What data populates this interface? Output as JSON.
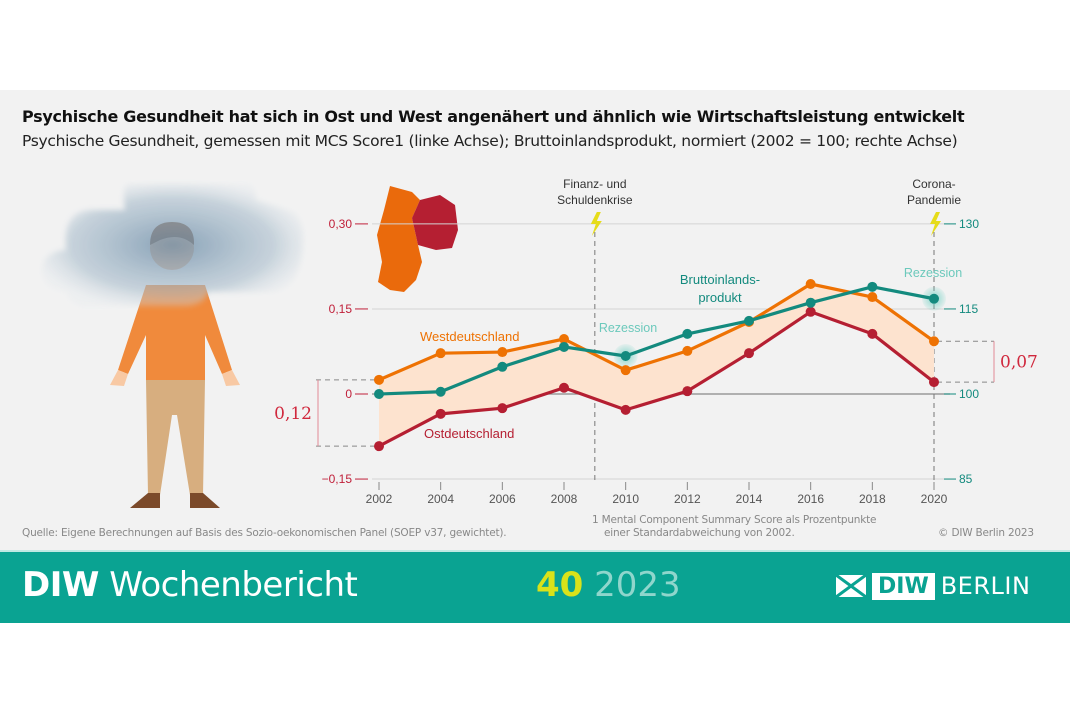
{
  "header": {
    "title": "Psychische Gesundheit hat sich in Ost und West angenähert und ähnlich wie Wirtschaftsleistung entwickelt",
    "subtitle": "Psychische Gesundheit, gemessen mit MCS Score1 (linke Achse); Bruttoinlandsprodukt, normiert (2002 = 100; rechte Achse)"
  },
  "chart_data": {
    "type": "line",
    "x": [
      2002,
      2004,
      2006,
      2008,
      2010,
      2012,
      2014,
      2016,
      2018,
      2020
    ],
    "xticks": [
      "2002",
      "2004",
      "2006",
      "2008",
      "2010",
      "2012",
      "2014",
      "2016",
      "2018",
      "2020"
    ],
    "left_axis": {
      "ylim": [
        -0.15,
        0.3
      ],
      "ticks": [
        "−0,15",
        "0",
        "0,15",
        "0,30"
      ],
      "tick_values": [
        -0.15,
        0,
        0.15,
        0.3
      ],
      "color": "#c0203a"
    },
    "right_axis": {
      "ylim": [
        85,
        130
      ],
      "ticks": [
        "85",
        "100",
        "115",
        "130"
      ],
      "tick_values": [
        85,
        100,
        115,
        130
      ],
      "color": "#138a7e"
    },
    "grid": true,
    "series": [
      {
        "name": "Westdeutschland",
        "axis": "left",
        "color": "#ee7203",
        "values": [
          0.025,
          0.072,
          0.074,
          0.097,
          0.042,
          0.076,
          0.127,
          0.194,
          0.171,
          0.093
        ]
      },
      {
        "name": "Ostdeutschland",
        "axis": "left",
        "color": "#b51f32",
        "values": [
          -0.092,
          -0.035,
          -0.025,
          0.011,
          -0.028,
          0.005,
          0.072,
          0.145,
          0.106,
          0.021
        ]
      },
      {
        "name": "Bruttoinlands-produkt",
        "name_lines": [
          "Bruttoinlands-",
          "produkt"
        ],
        "axis": "right",
        "color": "#138a7e",
        "values": [
          100,
          100.4,
          104.8,
          108.3,
          106.7,
          110.6,
          112.9,
          116.1,
          118.9,
          116.8
        ]
      }
    ],
    "gap_fill_color": "#fde3cf",
    "annotations": {
      "gap_2002": "0,12",
      "gap_2020": "0,07",
      "recession_label": "Rezession",
      "recession_years": [
        2010,
        2020
      ],
      "events": [
        {
          "year": 2009,
          "lines": [
            "Finanz- und",
            "Schuldenkrise"
          ]
        },
        {
          "year": 2020,
          "lines": [
            "Corona-",
            "Pandemie"
          ]
        }
      ]
    }
  },
  "footer": {
    "source": "Quelle: Eigene Berechnungen auf Basis des Sozio-oekonomischen Panel (SOEP v37, gewichtet).",
    "footnote_1": "1  Mental Component Summary Score als Prozentpunkte",
    "footnote_2": "einer Standardabweichung von 2002.",
    "copyright": "© DIW Berlin 2023"
  },
  "banner": {
    "brand_bold": "DIW",
    "brand_rest": " Wochenbericht",
    "issue_number": "40",
    "issue_year": "2023",
    "logo_box": "DIW",
    "logo_text": "BERLIN",
    "color": "#0aa392"
  }
}
